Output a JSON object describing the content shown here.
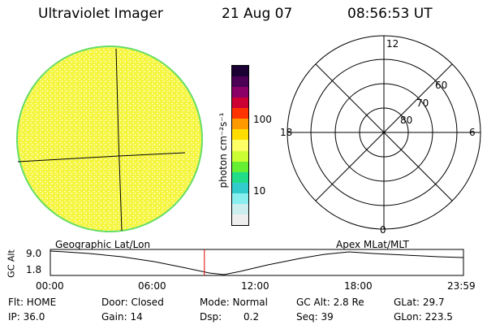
{
  "header": {
    "title": "Ultraviolet Imager",
    "date": "21 Aug 07",
    "time": "08:56:53 UT"
  },
  "colorbar": {
    "unit_label": "photon cm⁻²s⁻¹",
    "ticks": [
      {
        "label": "100",
        "value": 100
      },
      {
        "label": "10",
        "value": 10
      }
    ],
    "colors": [
      "#1a0033",
      "#4b0055",
      "#8a0066",
      "#cc0033",
      "#ff3300",
      "#ff9900",
      "#ffdd00",
      "#ffff66",
      "#ccff33",
      "#66ee33",
      "#22dd88",
      "#33cccc",
      "#88eeee",
      "#cceeee",
      "#eeeeee"
    ]
  },
  "geo_image": {
    "fill_color": "#f5f540",
    "speckle_color": "#ffffcc",
    "edge_color": "#66dd66"
  },
  "polar_plot": {
    "mlt_labels": {
      "top": "12",
      "left": "18",
      "right": "6",
      "bottom": "0"
    },
    "lat_labels": [
      "60",
      "70",
      "80"
    ]
  },
  "orbit_plot": {
    "left_title": "Geographic Lat/Lon",
    "right_title": "Apex MLat/MLT",
    "y_axis_label": "GC Alt",
    "y_ticks": [
      "9.0",
      "1.8"
    ],
    "x_ticks": [
      "00:00",
      "06:00",
      "12:00",
      "18:00",
      "23:59"
    ],
    "marker_time_hours": 8.95,
    "marker_color": "#dd0000"
  },
  "info": {
    "flt": "Flt: HOME",
    "ip": "IP: 36.0",
    "door": "Door: Closed",
    "gain": "Gain: 14",
    "mode": "Mode: Normal",
    "dsp_label": "Dsp:",
    "dsp_value": "0.2",
    "gc_alt": "GC Alt: 2.8 Re",
    "seq": "Seq: 39",
    "glat": "GLat: 29.7",
    "glon": "GLon: 223.5"
  }
}
